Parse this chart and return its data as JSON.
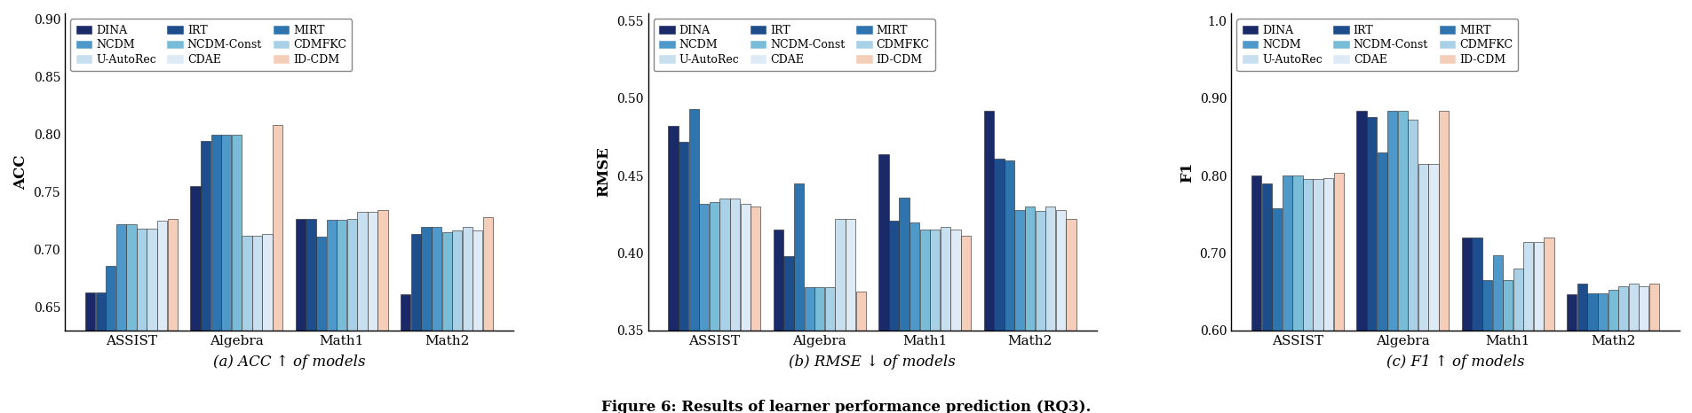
{
  "models": [
    "DINA",
    "IRT",
    "MIRT",
    "NCDM",
    "NCDM-Const",
    "CDMFKC",
    "U-AutoRec",
    "CDAE",
    "ID-CDM"
  ],
  "colors": [
    "#1a2968",
    "#1e4d8c",
    "#2e75b0",
    "#4e99ca",
    "#79bcd8",
    "#a8d0e6",
    "#c8dff0",
    "#deeaf5",
    "#f5ceba"
  ],
  "datasets": [
    "ASSIST",
    "Algebra",
    "Math1",
    "Math2"
  ],
  "acc": {
    "DINA": [
      0.663,
      0.755,
      0.727,
      0.661
    ],
    "IRT": [
      0.663,
      0.794,
      0.727,
      0.714
    ],
    "MIRT": [
      0.686,
      0.8,
      0.711,
      0.72
    ],
    "NCDM": [
      0.722,
      0.8,
      0.726,
      0.72
    ],
    "NCDM-Const": [
      0.722,
      0.8,
      0.726,
      0.715
    ],
    "CDMFKC": [
      0.718,
      0.712,
      0.727,
      0.717
    ],
    "U-AutoRec": [
      0.718,
      0.712,
      0.733,
      0.72
    ],
    "CDAE": [
      0.725,
      0.714,
      0.733,
      0.717
    ],
    "ID-CDM": [
      0.727,
      0.808,
      0.734,
      0.728
    ]
  },
  "rmse": {
    "DINA": [
      0.482,
      0.415,
      0.464,
      0.492
    ],
    "IRT": [
      0.472,
      0.398,
      0.421,
      0.461
    ],
    "MIRT": [
      0.493,
      0.445,
      0.436,
      0.46
    ],
    "NCDM": [
      0.432,
      0.378,
      0.42,
      0.428
    ],
    "NCDM-Const": [
      0.433,
      0.378,
      0.415,
      0.43
    ],
    "CDMFKC": [
      0.435,
      0.378,
      0.415,
      0.427
    ],
    "U-AutoRec": [
      0.435,
      0.422,
      0.417,
      0.43
    ],
    "CDAE": [
      0.432,
      0.422,
      0.415,
      0.428
    ],
    "ID-CDM": [
      0.43,
      0.375,
      0.411,
      0.422
    ]
  },
  "f1": {
    "DINA": [
      0.8,
      0.884,
      0.72,
      0.647
    ],
    "IRT": [
      0.79,
      0.876,
      0.72,
      0.66
    ],
    "MIRT": [
      0.758,
      0.83,
      0.665,
      0.648
    ],
    "NCDM": [
      0.8,
      0.884,
      0.697,
      0.648
    ],
    "NCDM-Const": [
      0.8,
      0.884,
      0.665,
      0.652
    ],
    "CDMFKC": [
      0.796,
      0.873,
      0.68,
      0.657
    ],
    "U-AutoRec": [
      0.796,
      0.815,
      0.714,
      0.66
    ],
    "CDAE": [
      0.797,
      0.815,
      0.714,
      0.657
    ],
    "ID-CDM": [
      0.804,
      0.884,
      0.72,
      0.66
    ]
  },
  "acc_ylim": [
    0.63,
    0.905
  ],
  "acc_yticks": [
    0.65,
    0.7,
    0.75,
    0.8,
    0.85,
    0.9
  ],
  "rmse_ylim": [
    0.35,
    0.555
  ],
  "rmse_yticks": [
    0.35,
    0.4,
    0.45,
    0.5,
    0.55
  ],
  "f1_ylim": [
    0.6,
    1.01
  ],
  "f1_yticks": [
    0.6,
    0.7,
    0.8,
    0.9,
    1.0
  ],
  "caption": "Figure 6: Results of learner performance prediction (RQ3).",
  "subcaptions": [
    "(a) ACC ↑ of models",
    "(b) RMSE ↓ of models",
    "(c) F1 ↑ of models"
  ],
  "legend_order": [
    0,
    3,
    6,
    1,
    4,
    7,
    2,
    5,
    8
  ]
}
